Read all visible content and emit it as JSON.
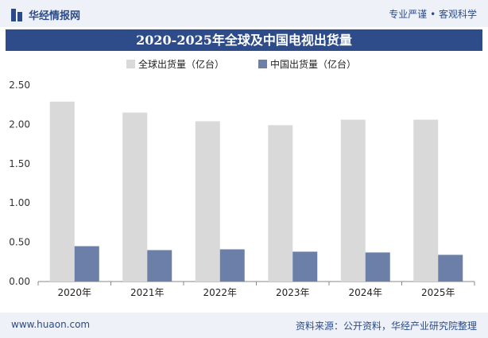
{
  "header": {
    "logo_text": "华经情报网",
    "tagline": "专业严谨 • 客观科学"
  },
  "footer": {
    "website": "www.huaon.com",
    "source": "资料来源：公开资料，华经产业研究院整理"
  },
  "colors": {
    "global": "#d9d9d9",
    "china": "#6b7fa8",
    "title_bg": "#2e4c8a"
  },
  "chart_data": {
    "type": "bar",
    "title": "2020-2025年全球及中国电视出货量",
    "categories": [
      "2020年",
      "2021年",
      "2022年",
      "2023年",
      "2024年",
      "2025年"
    ],
    "series": [
      {
        "name": "全球出货量（亿台）",
        "values": [
          2.29,
          2.15,
          2.04,
          1.99,
          2.06,
          2.06
        ]
      },
      {
        "name": "中国出货量（亿台）",
        "values": [
          0.45,
          0.4,
          0.41,
          0.38,
          0.37,
          0.34
        ]
      }
    ],
    "ylim": [
      0,
      2.5
    ],
    "yticks": [
      "0.00",
      "0.50",
      "1.00",
      "1.50",
      "2.00",
      "2.50"
    ],
    "legend": "top-left"
  }
}
